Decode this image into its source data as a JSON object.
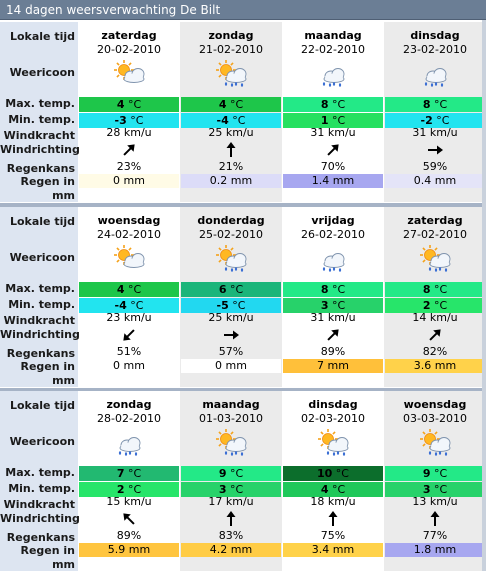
{
  "title": "14 dagen weersverwachting De Bilt",
  "labels": {
    "time": "Lokale tijd",
    "icon": "Weericoon",
    "max": "Max. temp.",
    "min": "Min. temp.",
    "wind_force": "Windkracht",
    "wind_dir": "Windrichting",
    "rain_chance": "Regenkans",
    "rain_mm_1": "Regen in",
    "rain_mm_2": "mm"
  },
  "unit_temp": "°C",
  "colors": {
    "title_bg": "#6b7e95",
    "label_bg": "#dde5f1",
    "max_green": "#1ec64a",
    "max_light": "#23e987",
    "min_cyan": "#22e4ef",
    "min_green": "#27e56a",
    "rain_blue": "#a7a7f0",
    "rain_yellow": "#ffd24a"
  },
  "weeks": [
    {
      "days": [
        {
          "day": "zaterdag",
          "date": "20-02-2010",
          "icon": "sun-cloud-icon",
          "max": "4",
          "min": "-3",
          "wind": "28 km/u",
          "dir": "ne-arrow-icon",
          "chance": "23%",
          "rain": "0 mm",
          "max_color": "#1ec64a",
          "min_color": "#22e4ef",
          "rain_color": "#fffbe6"
        },
        {
          "day": "zondag",
          "date": "21-02-2010",
          "icon": "sun-cloud-rain-icon",
          "max": "4",
          "min": "-4",
          "wind": "25 km/u",
          "dir": "n-arrow-icon",
          "chance": "21%",
          "rain": "0.2 mm",
          "max_color": "#1ec64a",
          "min_color": "#22e4ef",
          "rain_color": "#dcdcf8"
        },
        {
          "day": "maandag",
          "date": "22-02-2010",
          "icon": "cloud-rain-icon",
          "max": "8",
          "min": "1",
          "wind": "31 km/u",
          "dir": "ne-arrow-icon",
          "chance": "70%",
          "rain": "1.4 mm",
          "max_color": "#23e987",
          "min_color": "#26e060",
          "rain_color": "#a7a7f0"
        },
        {
          "day": "dinsdag",
          "date": "23-02-2010",
          "icon": "cloud-rain-icon",
          "max": "8",
          "min": "-2",
          "wind": "31 km/u",
          "dir": "e-arrow-icon",
          "chance": "59%",
          "rain": "0.4 mm",
          "max_color": "#23e987",
          "min_color": "#22e4ef",
          "rain_color": "#e4e4f8"
        }
      ]
    },
    {
      "days": [
        {
          "day": "woensdag",
          "date": "24-02-2010",
          "icon": "sun-cloud-icon",
          "max": "4",
          "min": "-4",
          "wind": "23 km/u",
          "dir": "sw-arrow-icon",
          "chance": "51%",
          "rain": "0 mm",
          "max_color": "#1ec64a",
          "min_color": "#22e4ef",
          "rain_color": "#ffffff"
        },
        {
          "day": "donderdag",
          "date": "25-02-2010",
          "icon": "sun-cloud-rain-icon",
          "max": "6",
          "min": "-5",
          "wind": "25 km/u",
          "dir": "e-arrow-icon",
          "chance": "57%",
          "rain": "0 mm",
          "max_color": "#1bb57a",
          "min_color": "#22d8f0",
          "rain_color": "#ffffff"
        },
        {
          "day": "vrijdag",
          "date": "26-02-2010",
          "icon": "cloud-rain-icon",
          "max": "8",
          "min": "3",
          "wind": "31 km/u",
          "dir": "ne-arrow-icon",
          "chance": "89%",
          "rain": "7 mm",
          "max_color": "#23e987",
          "min_color": "#27d26a",
          "rain_color": "#ffc03a"
        },
        {
          "day": "zaterdag",
          "date": "27-02-2010",
          "icon": "sun-cloud-rain-icon",
          "max": "8",
          "min": "2",
          "wind": "14 km/u",
          "dir": "ne-arrow-icon",
          "chance": "82%",
          "rain": "3.6 mm",
          "max_color": "#23e987",
          "min_color": "#27e56a",
          "rain_color": "#ffd24a"
        }
      ]
    },
    {
      "days": [
        {
          "day": "zondag",
          "date": "28-02-2010",
          "icon": "cloud-rain-icon",
          "max": "7",
          "min": "2",
          "wind": "15 km/u",
          "dir": "nw-arrow-icon",
          "chance": "89%",
          "rain": "5.9 mm",
          "max_color": "#22b971",
          "min_color": "#27e56a",
          "rain_color": "#ffc53f"
        },
        {
          "day": "maandag",
          "date": "01-03-2010",
          "icon": "sun-cloud-rain-icon",
          "max": "9",
          "min": "3",
          "wind": "17 km/u",
          "dir": "n-arrow-icon",
          "chance": "83%",
          "rain": "4.2 mm",
          "max_color": "#23e987",
          "min_color": "#27d26a",
          "rain_color": "#ffcc45"
        },
        {
          "day": "dinsdag",
          "date": "02-03-2010",
          "icon": "sun-cloud-rain-icon",
          "max": "10",
          "min": "4",
          "wind": "18 km/u",
          "dir": "n-arrow-icon",
          "chance": "75%",
          "rain": "3.4 mm",
          "max_color": "#0c6e2c",
          "min_color": "#1fc85a",
          "rain_color": "#ffd24a"
        },
        {
          "day": "woensdag",
          "date": "03-03-2010",
          "icon": "sun-cloud-rain-icon",
          "max": "9",
          "min": "3",
          "wind": "13 km/u",
          "dir": "n-arrow-icon",
          "chance": "77%",
          "rain": "1.8 mm",
          "max_color": "#23e987",
          "min_color": "#27d26a",
          "rain_color": "#a7a7f0"
        }
      ]
    }
  ]
}
